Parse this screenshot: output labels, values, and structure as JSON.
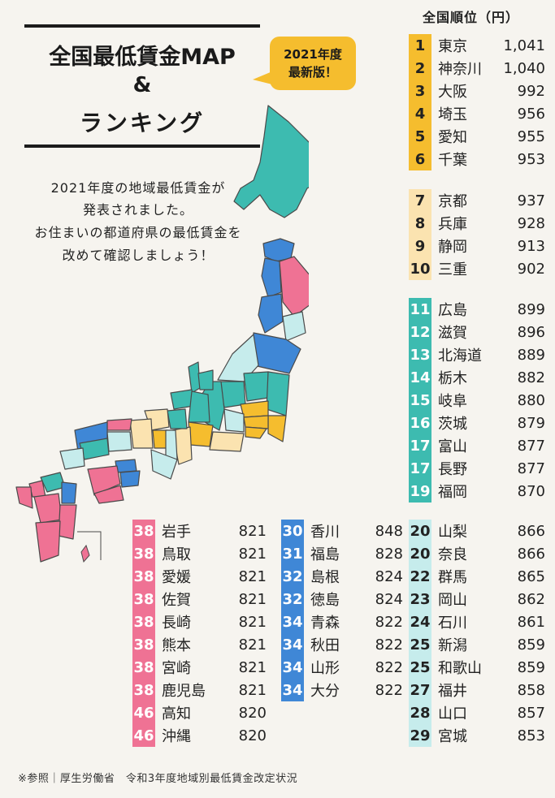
{
  "title": {
    "line1": "全国最低賃金MAP",
    "line2": "&",
    "line3": "ランキング"
  },
  "badge": {
    "line1": "2021年度",
    "line2": "最新版！"
  },
  "intro": [
    "2021年度の地域最低賃金が",
    "発表されました。",
    "お住まいの都道府県の最低賃金を",
    "改めて確認しましょう！"
  ],
  "ranking_header": "全国順位（円）",
  "colors": {
    "orange": "#f5bd2e",
    "light_orange": "#fbe3b0",
    "teal": "#3dbbb0",
    "light_teal": "#c6ecec",
    "blue": "#3f87d6",
    "pink": "#ef7294",
    "map_outline": "#4a4a4a"
  },
  "ranking": [
    {
      "rank": "1",
      "pref": "東京",
      "wage": "1,041"
    },
    {
      "rank": "2",
      "pref": "神奈川",
      "wage": "1,040"
    },
    {
      "rank": "3",
      "pref": "大阪",
      "wage": "992"
    },
    {
      "rank": "4",
      "pref": "埼玉",
      "wage": "956"
    },
    {
      "rank": "5",
      "pref": "愛知",
      "wage": "955"
    },
    {
      "rank": "6",
      "pref": "千葉",
      "wage": "953"
    },
    {
      "rank": "7",
      "pref": "京都",
      "wage": "937"
    },
    {
      "rank": "8",
      "pref": "兵庫",
      "wage": "928"
    },
    {
      "rank": "9",
      "pref": "静岡",
      "wage": "913"
    },
    {
      "rank": "10",
      "pref": "三重",
      "wage": "902"
    },
    {
      "rank": "11",
      "pref": "広島",
      "wage": "899"
    },
    {
      "rank": "12",
      "pref": "滋賀",
      "wage": "896"
    },
    {
      "rank": "13",
      "pref": "北海道",
      "wage": "889"
    },
    {
      "rank": "14",
      "pref": "栃木",
      "wage": "882"
    },
    {
      "rank": "15",
      "pref": "岐阜",
      "wage": "880"
    },
    {
      "rank": "16",
      "pref": "茨城",
      "wage": "879"
    },
    {
      "rank": "17",
      "pref": "富山",
      "wage": "877"
    },
    {
      "rank": "17",
      "pref": "長野",
      "wage": "877"
    },
    {
      "rank": "19",
      "pref": "福岡",
      "wage": "870"
    },
    {
      "rank": "20",
      "pref": "山梨",
      "wage": "866"
    },
    {
      "rank": "20",
      "pref": "奈良",
      "wage": "866"
    },
    {
      "rank": "22",
      "pref": "群馬",
      "wage": "865"
    },
    {
      "rank": "23",
      "pref": "岡山",
      "wage": "862"
    },
    {
      "rank": "24",
      "pref": "石川",
      "wage": "861"
    },
    {
      "rank": "25",
      "pref": "新潟",
      "wage": "859"
    },
    {
      "rank": "25",
      "pref": "和歌山",
      "wage": "859"
    },
    {
      "rank": "27",
      "pref": "福井",
      "wage": "858"
    },
    {
      "rank": "28",
      "pref": "山口",
      "wage": "857"
    },
    {
      "rank": "29",
      "pref": "宮城",
      "wage": "853"
    },
    {
      "rank": "30",
      "pref": "香川",
      "wage": "848"
    },
    {
      "rank": "31",
      "pref": "福島",
      "wage": "828"
    },
    {
      "rank": "32",
      "pref": "島根",
      "wage": "824"
    },
    {
      "rank": "32",
      "pref": "徳島",
      "wage": "824"
    },
    {
      "rank": "34",
      "pref": "青森",
      "wage": "822"
    },
    {
      "rank": "34",
      "pref": "秋田",
      "wage": "822"
    },
    {
      "rank": "34",
      "pref": "山形",
      "wage": "822"
    },
    {
      "rank": "34",
      "pref": "大分",
      "wage": "822"
    },
    {
      "rank": "38",
      "pref": "岩手",
      "wage": "821"
    },
    {
      "rank": "38",
      "pref": "鳥取",
      "wage": "821"
    },
    {
      "rank": "38",
      "pref": "愛媛",
      "wage": "821"
    },
    {
      "rank": "38",
      "pref": "佐賀",
      "wage": "821"
    },
    {
      "rank": "38",
      "pref": "長崎",
      "wage": "821"
    },
    {
      "rank": "38",
      "pref": "熊本",
      "wage": "821"
    },
    {
      "rank": "38",
      "pref": "宮崎",
      "wage": "821"
    },
    {
      "rank": "38",
      "pref": "鹿児島",
      "wage": "821"
    },
    {
      "rank": "46",
      "pref": "高知",
      "wage": "820"
    },
    {
      "rank": "46",
      "pref": "沖縄",
      "wage": "820"
    }
  ],
  "footer": "※参照｜厚生労働省　令和3年度地域別最低賃金改定状況"
}
